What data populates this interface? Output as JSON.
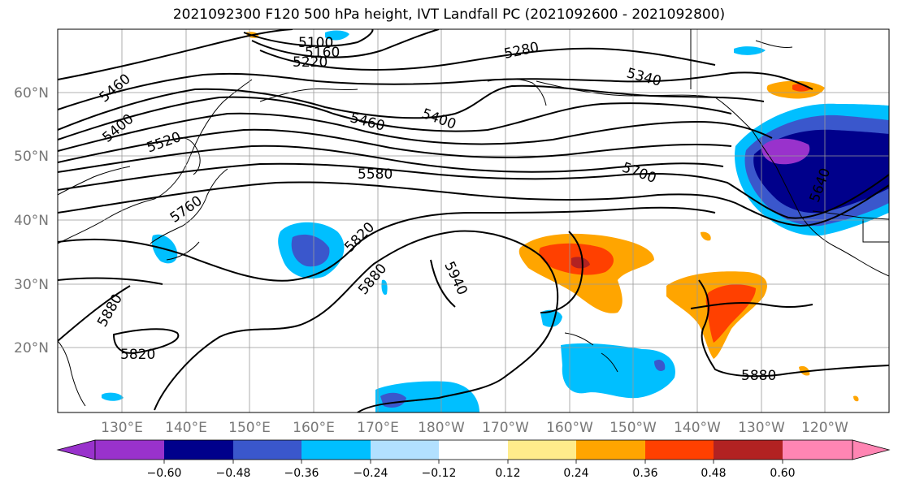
{
  "title": "2021092300 F120 500 hPa height, IVT Landfall PC (2021092600 - 2021092800)",
  "lat_labels": [
    "60°N",
    "50°N",
    "40°N",
    "30°N",
    "20°N"
  ],
  "lon_labels": [
    "130°E",
    "140°E",
    "150°E",
    "160°E",
    "170°E",
    "180°W",
    "170°W",
    "160°W",
    "150°W",
    "140°W",
    "130°W",
    "120°W"
  ],
  "contour_labels": [
    "5100",
    "5160",
    "5220",
    "5280",
    "5340",
    "5460",
    "5400",
    "5520",
    "5460",
    "5400",
    "5580",
    "5700",
    "5760",
    "5820",
    "5880",
    "5940",
    "5880",
    "5820",
    "5880",
    "5640"
  ],
  "colorbar": {
    "colors": [
      "#9932CC",
      "#00008B",
      "#3A57CC",
      "#00BFFF",
      "#B2E0FF",
      "#FFFFFF",
      "#FFEC8B",
      "#FFA500",
      "#FF4000",
      "#B22222",
      "#FF85B3"
    ],
    "tick_labels": [
      "−0.60",
      "−0.48",
      "−0.36",
      "−0.24",
      "−0.12",
      "0.12",
      "0.24",
      "0.36",
      "0.48",
      "0.60"
    ]
  }
}
